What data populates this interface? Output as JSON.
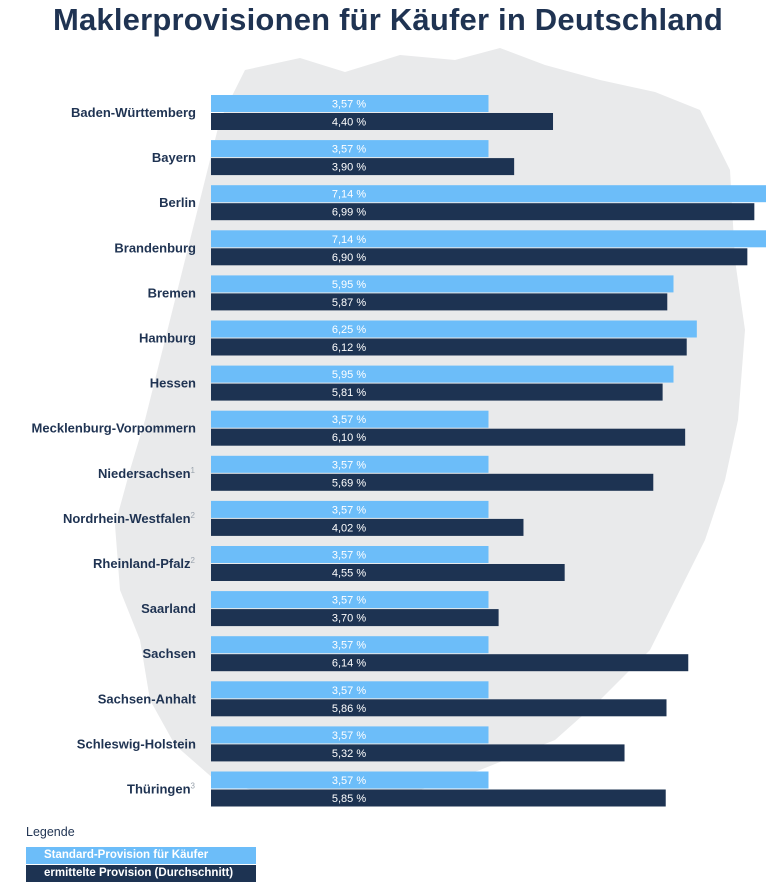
{
  "title": "Maklerprovisionen für Käufer in Deutschland",
  "legend": {
    "title": "Legende",
    "items": [
      {
        "label": "Standard-Provision für Käufer",
        "color": "#6cbdf9"
      },
      {
        "label": "ermittelte Provision (Durchschnitt)",
        "color": "#1d3352"
      }
    ]
  },
  "colors": {
    "standard": "#6cbdf9",
    "average": "#1d3352",
    "label_text": "#1f3352",
    "footnote": "#9aa3ad",
    "map": "#e9eaeb"
  },
  "chart_data": {
    "type": "bar",
    "orientation": "horizontal",
    "title": "Maklerprovisionen für Käufer in Deutschland",
    "xlim": [
      0,
      7.14
    ],
    "value_format": "percent_de",
    "categories": [
      {
        "label": "Baden-Württemberg",
        "footnote": ""
      },
      {
        "label": "Bayern",
        "footnote": ""
      },
      {
        "label": "Berlin",
        "footnote": ""
      },
      {
        "label": "Brandenburg",
        "footnote": ""
      },
      {
        "label": "Bremen",
        "footnote": ""
      },
      {
        "label": "Hamburg",
        "footnote": ""
      },
      {
        "label": "Hessen",
        "footnote": ""
      },
      {
        "label": "Mecklenburg-Vorpommern",
        "footnote": ""
      },
      {
        "label": "Niedersachsen",
        "footnote": "1"
      },
      {
        "label": "Nordrhein-Westfalen",
        "footnote": "2"
      },
      {
        "label": "Rheinland-Pfalz",
        "footnote": "2"
      },
      {
        "label": "Saarland",
        "footnote": ""
      },
      {
        "label": "Sachsen",
        "footnote": ""
      },
      {
        "label": "Sachsen-Anhalt",
        "footnote": ""
      },
      {
        "label": "Schleswig-Holstein",
        "footnote": ""
      },
      {
        "label": "Thüringen",
        "footnote": "3"
      }
    ],
    "series": [
      {
        "name": "Standard-Provision für Käufer",
        "values": [
          3.57,
          3.57,
          7.14,
          7.14,
          5.95,
          6.25,
          5.95,
          3.57,
          3.57,
          3.57,
          3.57,
          3.57,
          3.57,
          3.57,
          3.57,
          3.57
        ],
        "labels": [
          "3,57 %",
          "3,57 %",
          "7,14 %",
          "7,14 %",
          "5,95 %",
          "6,25 %",
          "5,95 %",
          "3,57 %",
          "3,57 %",
          "3,57 %",
          "3,57 %",
          "3,57 %",
          "3,57 %",
          "3,57 %",
          "3,57 %",
          "3,57 %"
        ]
      },
      {
        "name": "ermittelte Provision (Durchschnitt)",
        "values": [
          4.4,
          3.9,
          6.99,
          6.9,
          5.87,
          6.12,
          5.81,
          6.1,
          5.69,
          4.02,
          4.55,
          3.7,
          6.14,
          5.86,
          5.32,
          5.85
        ],
        "labels": [
          "4,40 %",
          "3,90 %",
          "6,99 %",
          "6,90 %",
          "5,87 %",
          "6,12 %",
          "5,81 %",
          "6,10 %",
          "5,69 %",
          "4,02 %",
          "4,55 %",
          "3,70 %",
          "6,14 %",
          "5,86 %",
          "5,32 %",
          "5,85 %"
        ]
      }
    ]
  }
}
